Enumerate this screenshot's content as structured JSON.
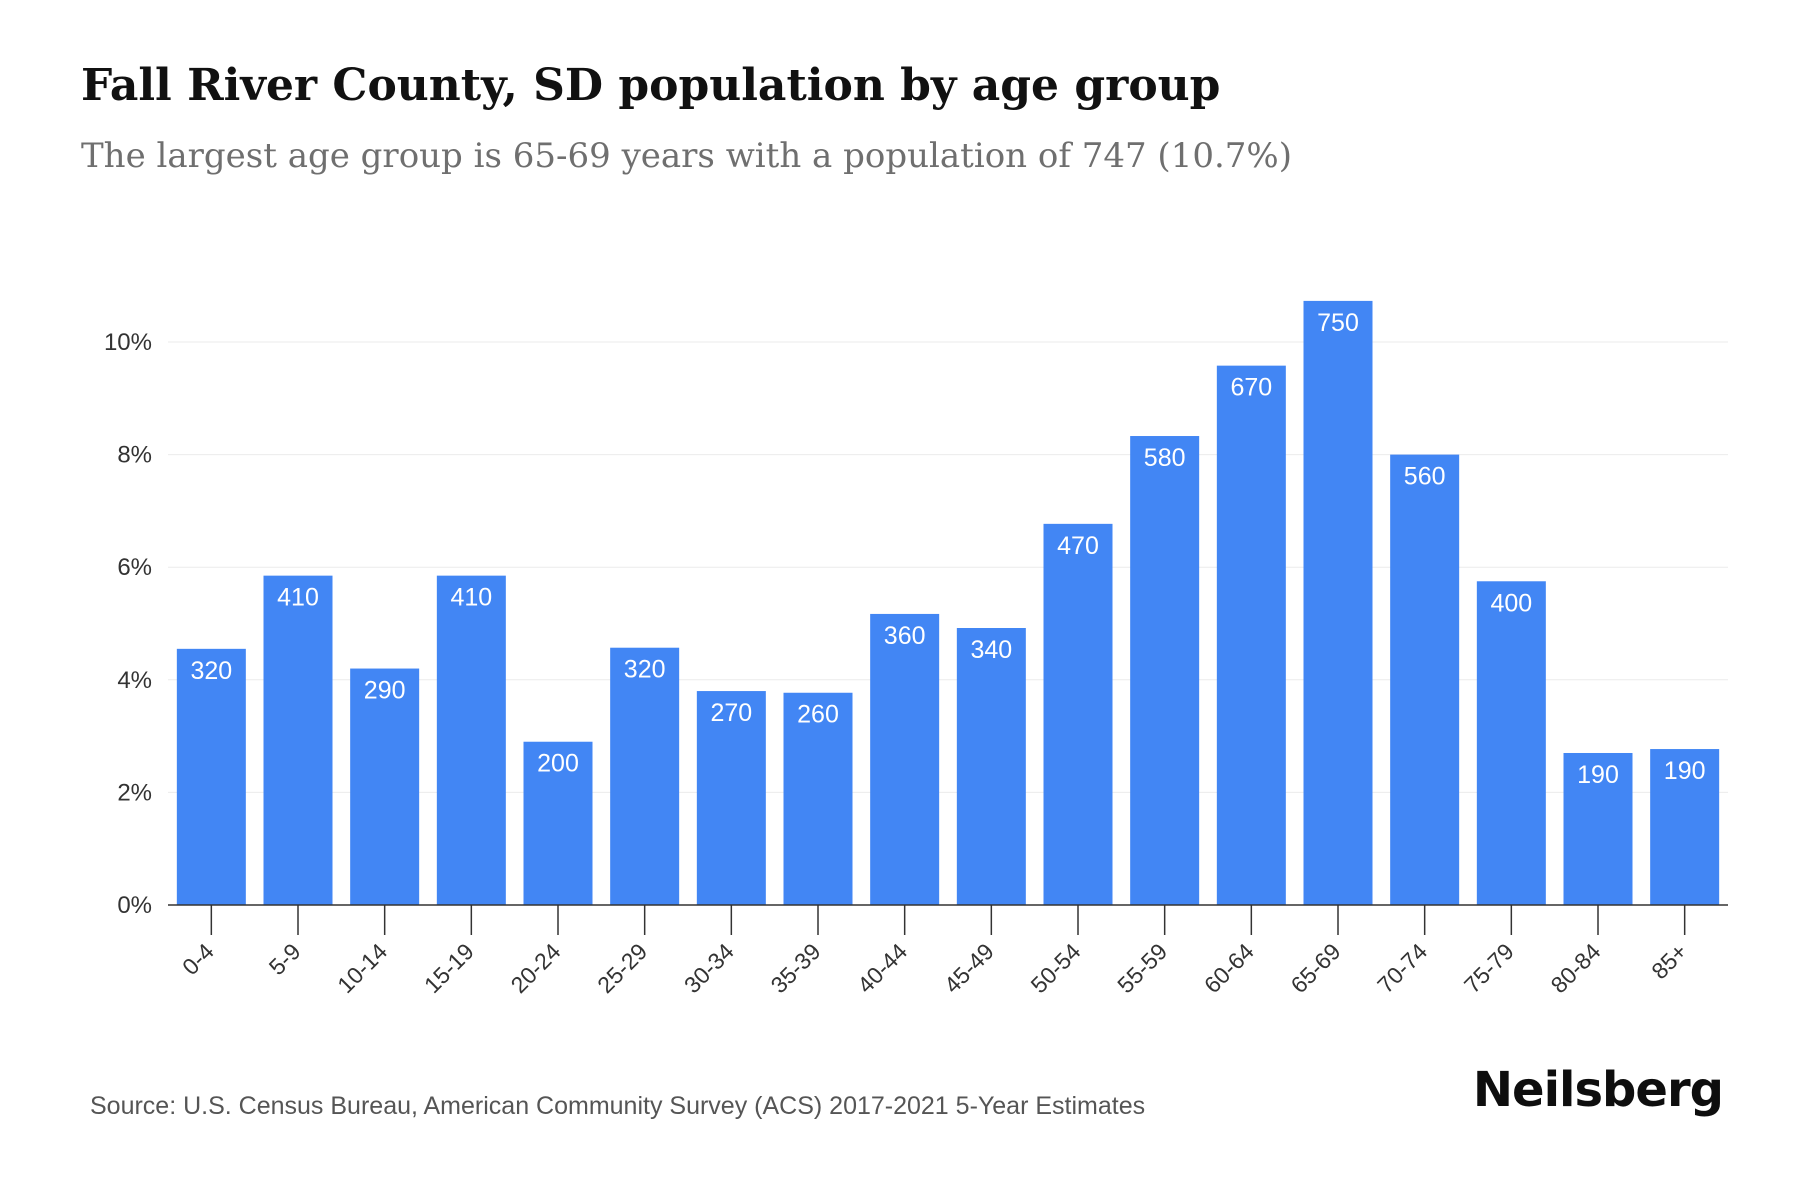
{
  "title": "Fall River County, SD population by age group",
  "subtitle": "The largest age group is 65-69 years with a population of 747 (10.7%)",
  "source": "Source: U.S. Census Bureau, American Community Survey (ACS) 2017-2021 5-Year Estimates",
  "brand": "Neilsberg",
  "colors": {
    "bar": "#4286f4",
    "bar_label": "#ffffff",
    "grid": "#ebebeb",
    "axis": "#333333",
    "tick_text": "#333333"
  },
  "chart_data": {
    "type": "bar",
    "title": "Fall River County, SD population by age group",
    "subtitle": "The largest age group is 65-69 years with a population of 747 (10.7%)",
    "xlabel": "",
    "ylabel": "",
    "categories": [
      "0-4",
      "5-9",
      "10-14",
      "15-19",
      "20-24",
      "25-29",
      "30-34",
      "35-39",
      "40-44",
      "45-49",
      "50-54",
      "55-59",
      "60-64",
      "65-69",
      "70-74",
      "75-79",
      "80-84",
      "85+"
    ],
    "values_percent": [
      4.55,
      5.85,
      4.2,
      5.85,
      2.9,
      4.57,
      3.8,
      3.77,
      5.17,
      4.92,
      6.77,
      8.33,
      9.58,
      10.73,
      8.0,
      5.75,
      2.7,
      2.77
    ],
    "data_labels": [
      "320",
      "410",
      "290",
      "410",
      "200",
      "320",
      "270",
      "260",
      "360",
      "340",
      "470",
      "580",
      "670",
      "750",
      "560",
      "400",
      "190",
      "190"
    ],
    "y_ticks": [
      0,
      2,
      4,
      6,
      8,
      10
    ],
    "y_tick_labels": [
      "0%",
      "2%",
      "4%",
      "6%",
      "8%",
      "10%"
    ],
    "ylim": [
      0,
      11
    ],
    "grid": true,
    "legend": "none"
  }
}
